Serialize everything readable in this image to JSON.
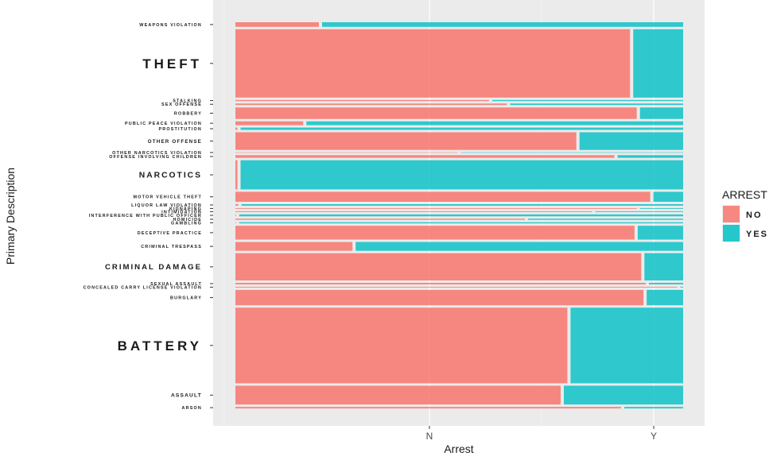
{
  "chart_data": {
    "type": "bar",
    "subtype": "mosaic",
    "xlabel": "Arrest",
    "ylabel": "Primary Description",
    "x_ticks": [
      "N",
      "Y"
    ],
    "legend": {
      "title": "ARREST",
      "position": "right",
      "entries": [
        {
          "label": "NO",
          "color": "#F8766D"
        },
        {
          "label": "YES",
          "color": "#00BFC4"
        }
      ]
    },
    "series": [
      {
        "name": "NO",
        "color": "#F8766D"
      },
      {
        "name": "YES",
        "color": "#00BFC4"
      }
    ],
    "categories": [
      {
        "label": "WEAPONS VIOLATION",
        "share": 0.012,
        "no_fraction": 0.19
      },
      {
        "label": "THEFT",
        "share": 0.178,
        "no_fraction": 0.885
      },
      {
        "label": "STALKING",
        "share": 0.003,
        "no_fraction": 0.57
      },
      {
        "label": "SEX OFFENSE",
        "share": 0.004,
        "no_fraction": 0.61
      },
      {
        "label": "ROBBERY",
        "share": 0.03,
        "no_fraction": 0.9
      },
      {
        "label": "PUBLIC PEACE VIOLATION",
        "share": 0.01,
        "no_fraction": 0.155
      },
      {
        "label": "PROSTITUTION",
        "share": 0.006,
        "no_fraction": 0.008
      },
      {
        "label": "OTHER OFFENSE",
        "share": 0.046,
        "no_fraction": 0.765
      },
      {
        "label": "OTHER NARCOTICS VIOLATION",
        "share": 0.001,
        "no_fraction": 0.5
      },
      {
        "label": "OFFENSE INVOLVING CHILDREN",
        "share": 0.007,
        "no_fraction": 0.85
      },
      {
        "label": "NARCOTICS",
        "share": 0.076,
        "no_fraction": 0.008
      },
      {
        "label": "MOTOR VEHICLE THEFT",
        "share": 0.026,
        "no_fraction": 0.93
      },
      {
        "label": "LIQUOR LAW VIOLATION",
        "share": 0.004,
        "no_fraction": 0.01
      },
      {
        "label": "KIDNAPING",
        "share": 0.002,
        "no_fraction": 0.9
      },
      {
        "label": "INTIMIDATION",
        "share": 0.002,
        "no_fraction": 0.8
      },
      {
        "label": "INTERFERENCE WITH PUBLIC OFFICER",
        "share": 0.005,
        "no_fraction": 0.005
      },
      {
        "label": "HOMICIDE",
        "share": 0.003,
        "no_fraction": 0.65
      },
      {
        "label": "GAMBLING",
        "share": 0.003,
        "no_fraction": 0.005
      },
      {
        "label": "DECEPTIVE PRACTICE",
        "share": 0.036,
        "no_fraction": 0.895
      },
      {
        "label": "CRIMINAL TRESPASS",
        "share": 0.023,
        "no_fraction": 0.265
      },
      {
        "label": "CRIMINAL DAMAGE",
        "share": 0.071,
        "no_fraction": 0.91
      },
      {
        "label": "SEXUAL ASSAULT",
        "share": 0.004,
        "no_fraction": 0.92
      },
      {
        "label": "CONCEALED CARRY LICENSE VIOLATION",
        "share": 0.002,
        "no_fraction": 0.99
      },
      {
        "label": "BURGLARY",
        "share": 0.04,
        "no_fraction": 0.915
      },
      {
        "label": "BATTERY",
        "share": 0.197,
        "no_fraction": 0.745
      },
      {
        "label": "ASSAULT",
        "share": 0.049,
        "no_fraction": 0.73
      },
      {
        "label": "ARSON",
        "share": 0.004,
        "no_fraction": 0.865
      }
    ]
  }
}
